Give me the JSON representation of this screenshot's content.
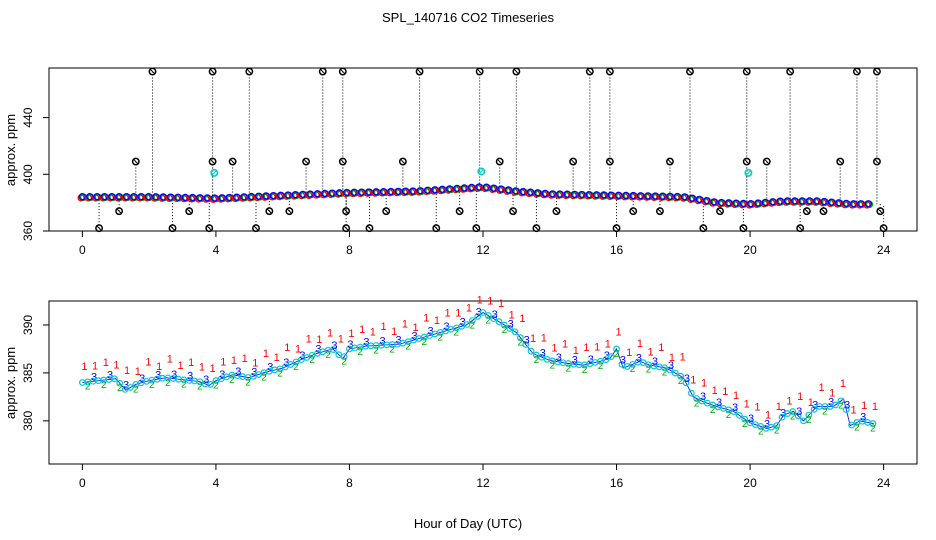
{
  "figure": {
    "title": "SPL_140716  CO2 Timeseries",
    "xlabel": "Hour of Day (UTC)"
  },
  "chart_data": [
    {
      "type": "scatter",
      "ylabel": "approx. ppm",
      "xlim": [
        -1,
        25
      ],
      "ylim": [
        360,
        475
      ],
      "xticks": [
        "0",
        "4",
        "8",
        "12",
        "16",
        "20",
        "24"
      ],
      "yticks": [
        "360",
        "400",
        "440"
      ],
      "grid": false,
      "colors": {
        "s1": "#ff0000",
        "s2": "#00aa00",
        "s3": "#0000ff",
        "fit": "#00cccc",
        "flag": "#000000"
      },
      "series": [
        {
          "values": [
            [
              0,
              384
            ],
            [
              2,
              384
            ],
            [
              4,
              383
            ],
            [
              6,
              385
            ],
            [
              8,
              387
            ],
            [
              10,
              388
            ],
            [
              12,
              391
            ],
            [
              13,
              388
            ],
            [
              14,
              386
            ],
            [
              16,
              385
            ],
            [
              18,
              384
            ],
            [
              19,
              380
            ],
            [
              20,
              379
            ],
            [
              21,
              381
            ],
            [
              22,
              381
            ],
            [
              23,
              379
            ],
            [
              23.7,
              379
            ]
          ]
        }
      ],
      "flags": {
        "top": [
          2.1,
          3.9,
          5.0,
          7.2,
          7.8,
          10.1,
          11.9,
          13.0,
          15.2,
          15.8,
          18.2,
          19.9,
          21.2,
          23.2,
          23.8
        ],
        "mid": [
          1.6,
          3.9,
          4.5,
          6.7,
          7.8,
          9.6,
          12.5,
          14.7,
          15.8,
          17.6,
          19.9,
          20.5,
          22.7,
          23.8
        ],
        "low": [
          1.1,
          3.2,
          5.6,
          6.2,
          7.9,
          9.1,
          11.3,
          12.9,
          14.2,
          16.5,
          17.3,
          19.1,
          21.7,
          22.2,
          23.9
        ],
        "bottom": [
          0.5,
          2.7,
          3.8,
          5.2,
          7.9,
          8.6,
          10.6,
          11.8,
          13.6,
          16.0,
          18.6,
          19.8,
          21.5,
          24.0
        ],
        "fit": [
          [
            3.95,
            401
          ],
          [
            11.95,
            402
          ],
          [
            19.95,
            401
          ]
        ]
      }
    },
    {
      "type": "scatter",
      "ylabel": "approx. ppm",
      "xlim": [
        -1,
        25
      ],
      "ylim": [
        375.5,
        392.5
      ],
      "xticks": [
        "0",
        "4",
        "8",
        "12",
        "16",
        "20",
        "24"
      ],
      "yticks": [
        "380",
        "385",
        "390"
      ],
      "grid": false,
      "markers": {
        "s1": "1",
        "s2": "2",
        "s3": "3"
      },
      "series": [
        {
          "values": [
            [
              0,
              384
            ],
            [
              0.5,
              384.2
            ],
            [
              1,
              384.4
            ],
            [
              1.3,
              383.2
            ],
            [
              1.6,
              383.8
            ],
            [
              2,
              384.2
            ],
            [
              2.5,
              384.5
            ],
            [
              3,
              384.3
            ],
            [
              3.5,
              384.1
            ],
            [
              3.8,
              383.7
            ],
            [
              4,
              384.2
            ],
            [
              4.5,
              384.8
            ],
            [
              5,
              384.5
            ],
            [
              5.5,
              385.1
            ],
            [
              6,
              385.5
            ],
            [
              6.5,
              386.3
            ],
            [
              7,
              387
            ],
            [
              7.5,
              387.5
            ],
            [
              7.8,
              386.5
            ],
            [
              8,
              387.5
            ],
            [
              8.5,
              387.8
            ],
            [
              9,
              387.9
            ],
            [
              9.5,
              388
            ],
            [
              10,
              388.5
            ],
            [
              10.5,
              389
            ],
            [
              11,
              389.5
            ],
            [
              11.5,
              390
            ],
            [
              12,
              391.3
            ],
            [
              12.5,
              390.3
            ],
            [
              13,
              389.2
            ],
            [
              13.5,
              387
            ],
            [
              14,
              386.3
            ],
            [
              14.5,
              386
            ],
            [
              15,
              385.8
            ],
            [
              15.5,
              386.2
            ],
            [
              15.8,
              386.5
            ],
            [
              16,
              387.5
            ],
            [
              16.2,
              385.5
            ],
            [
              16.7,
              386.2
            ],
            [
              17,
              385.8
            ],
            [
              17.5,
              385.5
            ],
            [
              18,
              384.5
            ],
            [
              18.3,
              382.5
            ],
            [
              18.6,
              382
            ],
            [
              19,
              381.5
            ],
            [
              19.5,
              381
            ],
            [
              20,
              379.8
            ],
            [
              20.5,
              379.2
            ],
            [
              20.8,
              379.5
            ],
            [
              21,
              380.6
            ],
            [
              21.3,
              381
            ],
            [
              21.6,
              380
            ],
            [
              22,
              381.5
            ],
            [
              22.5,
              381.5
            ],
            [
              22.8,
              382.3
            ],
            [
              23,
              379.5
            ],
            [
              23.3,
              380
            ],
            [
              23.7,
              379.7
            ]
          ]
        }
      ]
    }
  ]
}
